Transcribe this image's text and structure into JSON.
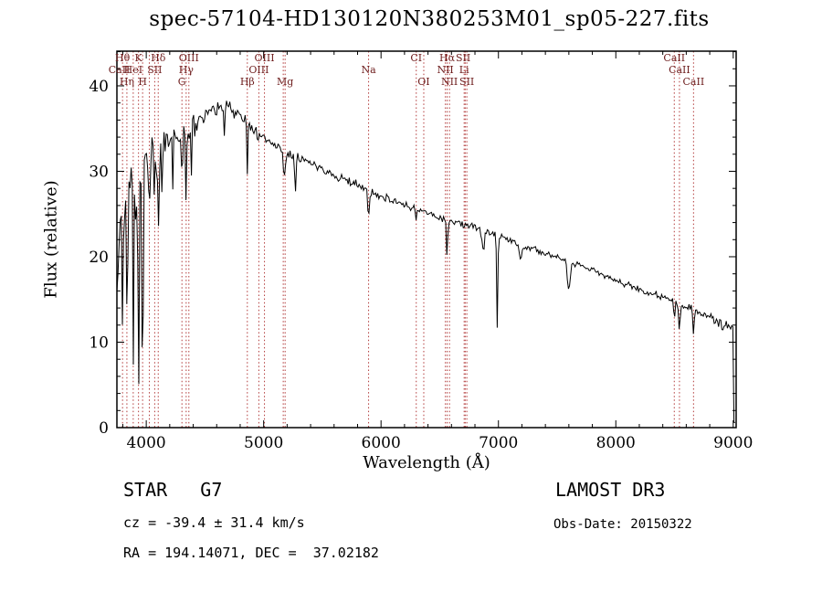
{
  "chart_data": {
    "type": "line",
    "title": "spec-57104-HD130120N380253M01_sp05-227.fits",
    "xlabel": "Wavelength (Å)",
    "ylabel": "Flux (relative)",
    "xlim": [
      3750,
      9025
    ],
    "ylim": [
      0,
      44.06
    ],
    "x_ticks": [
      4000,
      5000,
      6000,
      7000,
      8000,
      9000
    ],
    "y_ticks": [
      0,
      10,
      20,
      30,
      40
    ],
    "x_minor_step": 200,
    "y_minor_step": 2,
    "grid": false,
    "line_color": "#000000",
    "marker_color": "#b23a3a",
    "label_color": "#6e1e1e",
    "continuum": {
      "wavelength": [
        3750,
        3800,
        3850,
        3900,
        3950,
        4000,
        4100,
        4200,
        4300,
        4400,
        4500,
        4600,
        4700,
        4800,
        4900,
        5000,
        5100,
        5200,
        5300,
        5400,
        5500,
        5600,
        5700,
        5800,
        5900,
        6000,
        6100,
        6200,
        6300,
        6400,
        6500,
        6600,
        6700,
        6800,
        6900,
        7000,
        7100,
        7200,
        7300,
        7400,
        7500,
        7600,
        7700,
        7800,
        7900,
        8000,
        8100,
        8200,
        8300,
        8400,
        8500,
        8600,
        8700,
        8800,
        8900,
        9000,
        9025
      ],
      "flux": [
        23,
        26,
        27,
        29,
        31,
        32,
        32.5,
        34,
        34.5,
        35.5,
        36.5,
        37.5,
        37.8,
        36.5,
        35.0,
        33.8,
        33.2,
        32.2,
        31.6,
        31.0,
        30.3,
        29.6,
        29.0,
        28.4,
        27.6,
        27.2,
        26.6,
        26.1,
        25.6,
        25.1,
        24.6,
        24.1,
        23.8,
        23.4,
        23.0,
        22.4,
        21.9,
        21.4,
        20.9,
        20.4,
        19.9,
        19.3,
        18.9,
        18.4,
        17.8,
        17.2,
        16.7,
        16.2,
        15.7,
        15.2,
        14.7,
        14.2,
        13.6,
        12.9,
        12.2,
        11.3,
        10.8
      ]
    },
    "absorption_features": [
      {
        "wl": 3755,
        "depth": 12,
        "width": 5
      },
      {
        "wl": 3798,
        "depth": 10,
        "width": 5
      },
      {
        "wl": 3835,
        "depth": 13,
        "width": 5
      },
      {
        "wl": 3889,
        "depth": 16,
        "width": 5
      },
      {
        "wl": 3934,
        "depth": 24,
        "width": 6
      },
      {
        "wl": 3969,
        "depth": 25,
        "width": 6
      },
      {
        "wl": 4026,
        "depth": 8,
        "width": 4
      },
      {
        "wl": 4072,
        "depth": 7,
        "width": 4
      },
      {
        "wl": 4102,
        "depth": 11,
        "width": 5
      },
      {
        "wl": 4227,
        "depth": 7,
        "width": 4
      },
      {
        "wl": 4305,
        "depth": 6,
        "width": 5
      },
      {
        "wl": 4340,
        "depth": 9,
        "width": 4
      },
      {
        "wl": 4384,
        "depth": 6,
        "width": 4
      },
      {
        "wl": 4668,
        "depth": 4,
        "width": 4
      },
      {
        "wl": 4861,
        "depth": 6,
        "width": 4
      },
      {
        "wl": 5175,
        "depth": 3.5,
        "width": 8
      },
      {
        "wl": 5270,
        "depth": 4,
        "width": 5
      },
      {
        "wl": 5894,
        "depth": 3.2,
        "width": 6
      },
      {
        "wl": 6300,
        "depth": 1.2,
        "width": 4
      },
      {
        "wl": 6563,
        "depth": 4.5,
        "width": 5
      },
      {
        "wl": 6870,
        "depth": 2.5,
        "width": 10
      },
      {
        "wl": 6990,
        "depth": 10.5,
        "width": 5
      },
      {
        "wl": 7190,
        "depth": 1.5,
        "width": 12
      },
      {
        "wl": 7600,
        "depth": 3,
        "width": 12
      },
      {
        "wl": 8498,
        "depth": 2.5,
        "width": 5
      },
      {
        "wl": 8542,
        "depth": 3,
        "width": 6
      },
      {
        "wl": 8662,
        "depth": 2.8,
        "width": 6
      }
    ],
    "noise": {
      "seed": 11,
      "segments": [
        {
          "max_wl": 3960,
          "sigma": 6.2
        },
        {
          "max_wl": 4150,
          "sigma": 3.4
        },
        {
          "max_wl": 4450,
          "sigma": 1.9
        },
        {
          "max_wl": 4750,
          "sigma": 1.1
        },
        {
          "max_wl": 5050,
          "sigma": 0.85
        },
        {
          "max_wl": 6000,
          "sigma": 0.6
        },
        {
          "max_wl": 7000,
          "sigma": 0.5
        },
        {
          "max_wl": 8300,
          "sigma": 0.45
        },
        {
          "max_wl": 8800,
          "sigma": 0.6
        },
        {
          "max_wl": 9100,
          "sigma": 0.85
        }
      ],
      "extra_dip_below_wl": 4150,
      "extra_dip_prob": 0.1,
      "extra_dip_max": 10
    },
    "spectral_line_markers": [
      3798,
      3835,
      3889,
      3934,
      3969,
      4026,
      4072,
      4102,
      4304,
      4340,
      4363,
      4861,
      4959,
      5007,
      5167,
      5183,
      5894,
      6300,
      6364,
      6548,
      6563,
      6583,
      6708,
      6717,
      6731,
      8498,
      8542,
      8662
    ],
    "line_labels": [
      {
        "text": "Hθ",
        "wl": 3798,
        "row": 1
      },
      {
        "text": "K",
        "wl": 3934,
        "row": 1
      },
      {
        "text": "Hδ",
        "wl": 4102,
        "row": 1
      },
      {
        "text": "OIII",
        "wl": 4363,
        "row": 1
      },
      {
        "text": "OIII",
        "wl": 5007,
        "row": 1
      },
      {
        "text": "CI",
        "wl": 6300,
        "row": 1
      },
      {
        "text": "Hα",
        "wl": 6563,
        "row": 1
      },
      {
        "text": "SII",
        "wl": 6700,
        "row": 1
      },
      {
        "text": "CaII",
        "wl": 8498,
        "row": 1
      },
      {
        "text": "CaII",
        "wl": 3770,
        "row": 2
      },
      {
        "text": "HeI",
        "wl": 3889,
        "row": 2
      },
      {
        "text": "SII",
        "wl": 4072,
        "row": 2
      },
      {
        "text": "Hγ",
        "wl": 4340,
        "row": 2
      },
      {
        "text": "OIII",
        "wl": 4959,
        "row": 2
      },
      {
        "text": "Na",
        "wl": 5894,
        "row": 2
      },
      {
        "text": "NII",
        "wl": 6548,
        "row": 2
      },
      {
        "text": "Li",
        "wl": 6708,
        "row": 2
      },
      {
        "text": "CaII",
        "wl": 8542,
        "row": 2
      },
      {
        "text": "Hη",
        "wl": 3835,
        "row": 3
      },
      {
        "text": "H",
        "wl": 3969,
        "row": 3
      },
      {
        "text": "G",
        "wl": 4304,
        "row": 3
      },
      {
        "text": "Hβ",
        "wl": 4861,
        "row": 3
      },
      {
        "text": "Mg",
        "wl": 5183,
        "row": 3
      },
      {
        "text": "OI",
        "wl": 6364,
        "row": 3
      },
      {
        "text": "NII",
        "wl": 6583,
        "row": 3
      },
      {
        "text": "SII",
        "wl": 6731,
        "row": 3
      },
      {
        "text": "CaII",
        "wl": 8662,
        "row": 3
      }
    ]
  },
  "annotations": {
    "classification": "STAR   G7",
    "survey": "LAMOST DR3",
    "cz": "cz = -39.4 ± 31.4 km/s",
    "obs_date": "Obs-Date: 20150322",
    "ra_dec": "RA = 194.14071, DEC =  37.02182"
  }
}
